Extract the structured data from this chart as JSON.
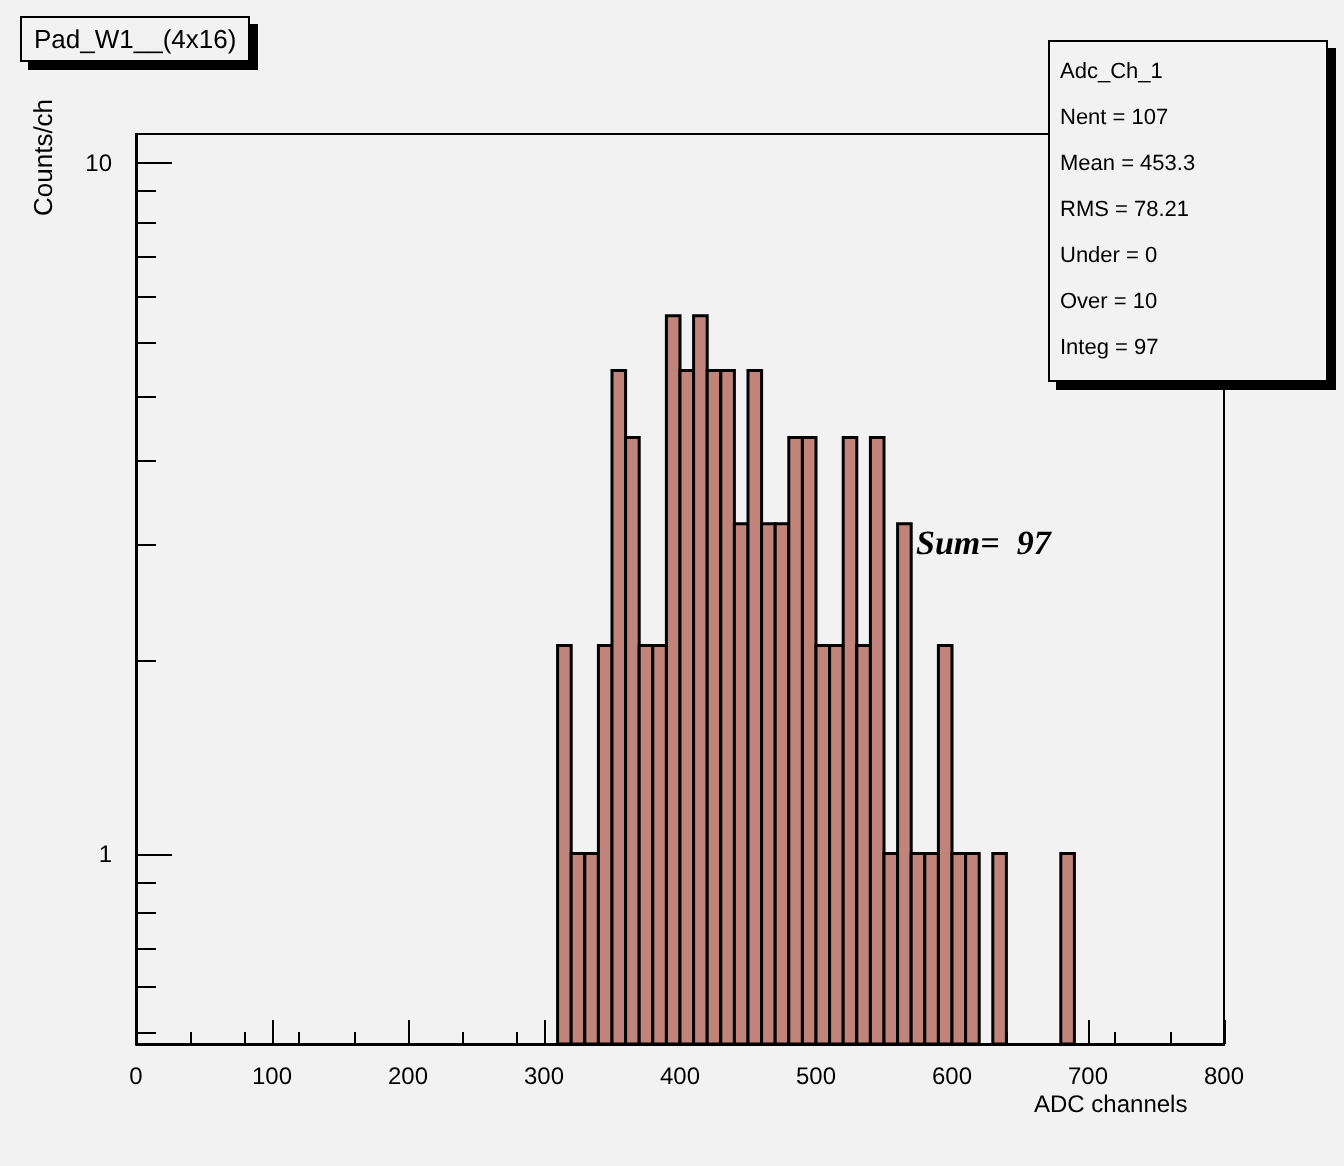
{
  "chart_data": {
    "type": "histogram",
    "title": "Pad_W1__(4x16)",
    "xlabel": "ADC channels",
    "ylabel": "Counts/ch",
    "bins": [
      310,
      320,
      330,
      340,
      350,
      360,
      370,
      380,
      390,
      400,
      410,
      420,
      430,
      440,
      450,
      460,
      470,
      480,
      490,
      500,
      510,
      520,
      530,
      540,
      550,
      560,
      570,
      580,
      590,
      600,
      610,
      620,
      630,
      640,
      650,
      660,
      670,
      680,
      690
    ],
    "values": [
      2,
      1,
      1,
      2,
      5,
      4,
      2,
      2,
      6,
      5,
      6,
      5,
      5,
      3,
      5,
      3,
      3,
      4,
      4,
      2,
      2,
      4,
      2,
      4,
      1,
      3,
      1,
      1,
      2,
      1,
      1,
      null,
      1,
      null,
      null,
      null,
      null,
      1
    ],
    "color": "#c0847a",
    "xlim": [
      0,
      800
    ],
    "xticks": [
      0,
      100,
      200,
      300,
      400,
      500,
      600,
      700,
      800
    ],
    "ylim": [
      0.53,
      11
    ],
    "yticks": [
      1,
      10
    ],
    "log": true,
    "grid": false,
    "annotations": [
      "Adc_Ch_1",
      "Nent = 107",
      "Mean = 453.3",
      "RMS = 78.21",
      "Under = 0",
      "Over = 10",
      "Integ = 97",
      "Sum=  97"
    ]
  }
}
